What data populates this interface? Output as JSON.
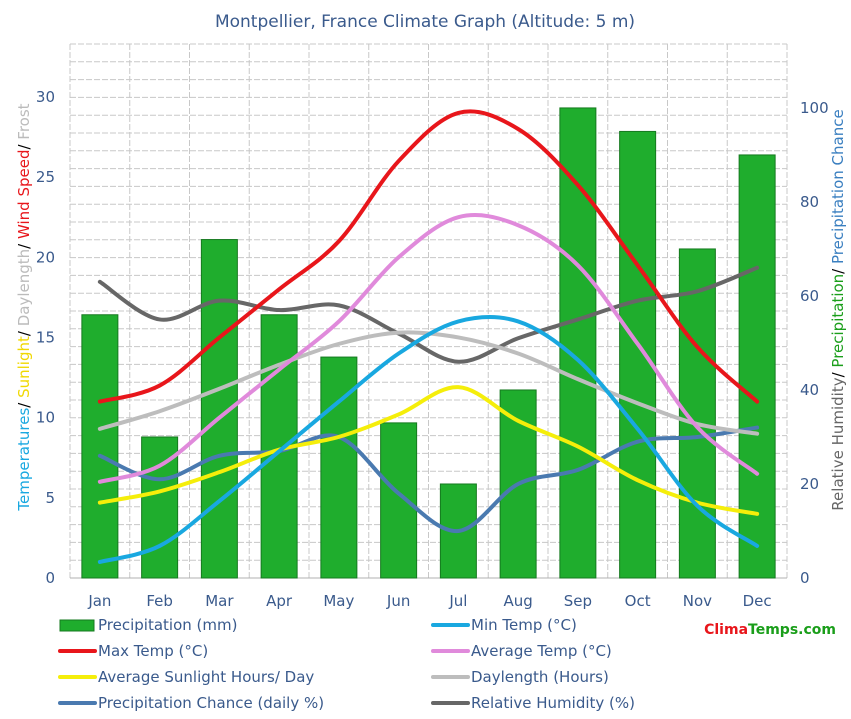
{
  "title": "Montpellier, France Climate Graph (Altitude: 5 m)",
  "brand": {
    "part1": "Clima",
    "part2": "Temps",
    "part3": ".com",
    "color1": "#e8161b",
    "color2": "#1a9e1a"
  },
  "left_axis_label": [
    {
      "text": "Temperatures",
      "color": "#19a8e0"
    },
    {
      "text": "/ ",
      "color": "#000000"
    },
    {
      "text": "Sunlight",
      "color": "#f0d800"
    },
    {
      "text": "/ ",
      "color": "#000000"
    },
    {
      "text": "Daylength",
      "color": "#bbbbbb"
    },
    {
      "text": "/ ",
      "color": "#000000"
    },
    {
      "text": "Wind Speed",
      "color": "#e8161b"
    },
    {
      "text": "/ ",
      "color": "#000000"
    },
    {
      "text": "Frost",
      "color": "#bbbbbb"
    }
  ],
  "right_axis_label": [
    {
      "text": "Relative Humidity",
      "color": "#666666"
    },
    {
      "text": "/ ",
      "color": "#000000"
    },
    {
      "text": "Precipitation",
      "color": "#1a9e1a"
    },
    {
      "text": "/ ",
      "color": "#000000"
    },
    {
      "text": "Precipitation Chance",
      "color": "#3a7fc0"
    }
  ],
  "legend": [
    {
      "label": "Precipitation (mm)",
      "color": "#1fad2d",
      "kind": "box"
    },
    {
      "label": "Min Temp (°C)",
      "color": "#19a8e0",
      "kind": "line"
    },
    {
      "label": "Max Temp (°C)",
      "color": "#e8161b",
      "kind": "line"
    },
    {
      "label": "Average Temp (°C)",
      "color": "#e08adb",
      "kind": "line"
    },
    {
      "label": "Average Sunlight Hours/ Day",
      "color": "#f5ee0a",
      "kind": "line"
    },
    {
      "label": "Daylength (Hours)",
      "color": "#bdbdbd",
      "kind": "line"
    },
    {
      "label": "Precipitation Chance (daily %)",
      "color": "#4a7ab0",
      "kind": "line"
    },
    {
      "label": "Relative Humidity (%)",
      "color": "#676767",
      "kind": "line"
    }
  ],
  "chart_data": {
    "type": "bar",
    "categories": [
      "Jan",
      "Feb",
      "Mar",
      "Apr",
      "May",
      "Jun",
      "Jul",
      "Aug",
      "Sep",
      "Oct",
      "Nov",
      "Dec"
    ],
    "left_axis": {
      "ticks": [
        0,
        5,
        10,
        15,
        20,
        25,
        30
      ],
      "range": [
        0,
        33.3
      ]
    },
    "right_axis": {
      "ticks": [
        0,
        20,
        40,
        60,
        80,
        100
      ],
      "range": [
        0,
        113.6
      ]
    },
    "grid": true,
    "legend_position": "bottom",
    "bars": {
      "name": "Precipitation (mm)",
      "axis": "right",
      "color": "#1fad2d",
      "values": [
        56,
        30,
        72,
        56,
        47,
        33,
        20,
        40,
        100,
        95,
        70,
        90
      ]
    },
    "series": [
      {
        "name": "Min Temp (°C)",
        "axis": "left",
        "color": "#19a8e0",
        "values": [
          1.0,
          2.0,
          4.8,
          7.9,
          11.0,
          14.0,
          16.0,
          16.0,
          13.6,
          9.3,
          4.5,
          2.0
        ]
      },
      {
        "name": "Max Temp (°C)",
        "axis": "left",
        "color": "#e8161b",
        "values": [
          11.0,
          12.0,
          15.0,
          18.0,
          21.0,
          26.0,
          29.0,
          28.0,
          24.5,
          19.5,
          14.4,
          11.0
        ]
      },
      {
        "name": "Average Temp (°C)",
        "axis": "left",
        "color": "#e08adb",
        "values": [
          6.0,
          7.0,
          10.0,
          13.0,
          16.0,
          20.0,
          22.5,
          22.0,
          19.5,
          14.6,
          9.4,
          6.5
        ]
      },
      {
        "name": "Average Sunlight Hours/ Day",
        "axis": "left",
        "color": "#f5ee0a",
        "values": [
          4.7,
          5.4,
          6.6,
          8.0,
          8.8,
          10.2,
          11.9,
          9.8,
          8.2,
          6.1,
          4.7,
          4.0
        ]
      },
      {
        "name": "Daylength (Hours)",
        "axis": "left",
        "color": "#bdbdbd",
        "values": [
          9.3,
          10.4,
          11.8,
          13.3,
          14.6,
          15.3,
          15.0,
          14.0,
          12.4,
          10.9,
          9.6,
          9.0
        ]
      },
      {
        "name": "Precipitation Chance (daily %)",
        "axis": "right",
        "color": "#4a7ab0",
        "values": [
          26,
          21,
          26,
          27,
          30,
          18,
          10,
          20,
          23,
          29,
          30,
          32
        ]
      },
      {
        "name": "Relative Humidity (%)",
        "axis": "right",
        "color": "#676767",
        "values": [
          63,
          55,
          59,
          57,
          58,
          52,
          46,
          51,
          55,
          59,
          61,
          66
        ]
      }
    ]
  }
}
